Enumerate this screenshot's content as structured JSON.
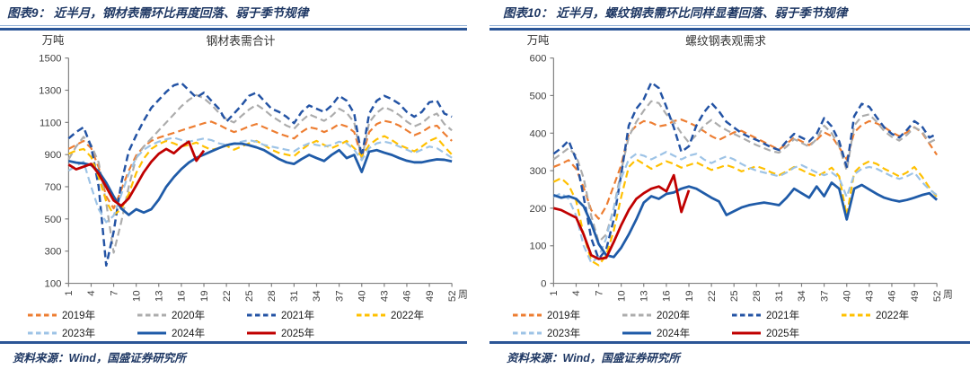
{
  "colors": {
    "header_navy": "#1f3864",
    "rule_navy": "#2b5596",
    "rule_light_blue": "#95b3d7",
    "axis_gray": "#808080",
    "tick_text": "#404040"
  },
  "panels": [
    {
      "figure_label": "图表9：",
      "figure_title": "近半月，钢材表需环比再度回落、弱于季节规律",
      "source": "资料来源：Wind，国盛证券研究所"
    },
    {
      "figure_label": "图表10：",
      "figure_title": "近半月，螺纹钢表需环比同样显著回落、弱于季节规律",
      "source": "资料来源：Wind，国盛证券研究所"
    }
  ],
  "chart_data": [
    {
      "type": "line",
      "title": "钢材表需合计",
      "unit": "万吨",
      "x_axis_suffix": "周",
      "x_range": [
        1,
        52
      ],
      "x_ticks": [
        1,
        4,
        7,
        10,
        13,
        16,
        19,
        22,
        25,
        28,
        31,
        34,
        37,
        40,
        43,
        46,
        49,
        52
      ],
      "ylim": [
        100,
        1500
      ],
      "y_ticks": [
        100,
        300,
        500,
        700,
        900,
        1100,
        1300,
        1500
      ],
      "grid": false,
      "legend_position": "bottom",
      "series": [
        {
          "name": "2019年",
          "color": "#ED7D31",
          "style": "dashed",
          "width": 2.2,
          "values": [
            935,
            960,
            985,
            940,
            820,
            640,
            565,
            680,
            800,
            895,
            950,
            985,
            1005,
            1020,
            1035,
            1050,
            1065,
            1080,
            1095,
            1105,
            1085,
            1060,
            1040,
            1055,
            1075,
            1090,
            1070,
            1050,
            1030,
            1015,
            1000,
            1040,
            1070,
            1060,
            1040,
            1060,
            1090,
            1075,
            1040,
            880,
            1040,
            1090,
            1110,
            1100,
            1080,
            1050,
            1020,
            1040,
            1070,
            1080,
            1030,
            985
          ]
        },
        {
          "name": "2020年",
          "color": "#ACACAC",
          "style": "dashed",
          "width": 2.2,
          "values": [
            870,
            950,
            1010,
            960,
            850,
            600,
            290,
            480,
            700,
            880,
            950,
            1000,
            1050,
            1100,
            1150,
            1200,
            1240,
            1270,
            1250,
            1210,
            1160,
            1120,
            1100,
            1140,
            1180,
            1210,
            1180,
            1140,
            1110,
            1080,
            1060,
            1110,
            1150,
            1130,
            1110,
            1140,
            1185,
            1160,
            1100,
            870,
            1100,
            1160,
            1195,
            1175,
            1145,
            1105,
            1075,
            1095,
            1135,
            1155,
            1090,
            1050
          ]
        },
        {
          "name": "2021年",
          "color": "#2353A4",
          "style": "dashed",
          "width": 2.5,
          "values": [
            1000,
            1040,
            1070,
            950,
            700,
            210,
            420,
            720,
            920,
            1020,
            1110,
            1190,
            1240,
            1290,
            1330,
            1345,
            1300,
            1255,
            1285,
            1235,
            1185,
            1105,
            1155,
            1205,
            1265,
            1285,
            1235,
            1185,
            1165,
            1135,
            1095,
            1165,
            1205,
            1185,
            1165,
            1205,
            1265,
            1235,
            1155,
            885,
            1155,
            1235,
            1265,
            1245,
            1215,
            1165,
            1135,
            1165,
            1225,
            1235,
            1155,
            1135
          ]
        },
        {
          "name": "2022年",
          "color": "#FFC000",
          "style": "dashed",
          "width": 2.2,
          "values": [
            905,
            925,
            935,
            885,
            760,
            610,
            525,
            560,
            655,
            785,
            875,
            935,
            965,
            985,
            970,
            950,
            960,
            975,
            950,
            930,
            940,
            955,
            930,
            950,
            970,
            985,
            960,
            930,
            910,
            900,
            890,
            930,
            965,
            985,
            960,
            940,
            960,
            985,
            940,
            890,
            960,
            995,
            1015,
            990,
            960,
            940,
            920,
            950,
            985,
            1005,
            950,
            900
          ]
        },
        {
          "name": "2023年",
          "color": "#9DC3E6",
          "style": "dashed",
          "width": 2.2,
          "values": [
            800,
            830,
            855,
            700,
            560,
            480,
            520,
            650,
            780,
            880,
            930,
            960,
            980,
            995,
            1005,
            990,
            980,
            990,
            1000,
            990,
            970,
            960,
            970,
            980,
            990,
            980,
            960,
            950,
            940,
            930,
            920,
            950,
            970,
            960,
            950,
            960,
            980,
            970,
            930,
            865,
            940,
            970,
            980,
            970,
            950,
            930,
            910,
            930,
            950,
            940,
            910,
            880
          ]
        },
        {
          "name": "2024年",
          "color": "#1F5BA8",
          "style": "solid",
          "width": 2.8,
          "values": [
            860,
            850,
            845,
            835,
            795,
            725,
            640,
            565,
            525,
            560,
            540,
            560,
            620,
            700,
            760,
            810,
            850,
            880,
            900,
            920,
            940,
            958,
            968,
            968,
            958,
            945,
            928,
            900,
            872,
            852,
            842,
            872,
            898,
            878,
            860,
            898,
            928,
            878,
            898,
            792,
            918,
            928,
            912,
            898,
            878,
            862,
            852,
            852,
            862,
            870,
            868,
            858
          ]
        },
        {
          "name": "2025年",
          "color": "#C00000",
          "style": "solid",
          "width": 2.8,
          "values": [
            838,
            808,
            825,
            842,
            780,
            698,
            615,
            582,
            628,
            708,
            790,
            855,
            905,
            935,
            908,
            950,
            980,
            862,
            925
          ]
        }
      ]
    },
    {
      "type": "line",
      "title": "螺纹钢表观需求",
      "unit": "万吨",
      "x_axis_suffix": "周",
      "x_range": [
        1,
        52
      ],
      "x_ticks": [
        1,
        4,
        7,
        10,
        13,
        16,
        19,
        22,
        25,
        28,
        31,
        34,
        37,
        40,
        43,
        46,
        49,
        52
      ],
      "ylim": [
        0,
        600
      ],
      "y_ticks": [
        0,
        100,
        200,
        300,
        400,
        500,
        600
      ],
      "grid": false,
      "legend_position": "bottom",
      "series": [
        {
          "name": "2019年",
          "color": "#ED7D31",
          "style": "dashed",
          "width": 2.2,
          "values": [
            310,
            318,
            328,
            305,
            255,
            195,
            172,
            205,
            260,
            315,
            398,
            420,
            432,
            428,
            418,
            422,
            432,
            436,
            428,
            418,
            405,
            392,
            382,
            392,
            402,
            406,
            396,
            386,
            376,
            366,
            356,
            372,
            388,
            378,
            368,
            382,
            402,
            392,
            362,
            330,
            402,
            422,
            432,
            426,
            416,
            402,
            392,
            402,
            416,
            402,
            372,
            342
          ]
        },
        {
          "name": "2020年",
          "color": "#ACACAC",
          "style": "dashed",
          "width": 2.2,
          "values": [
            330,
            345,
            360,
            340,
            280,
            180,
            110,
            130,
            200,
            300,
            390,
            430,
            460,
            485,
            480,
            450,
            430,
            400,
            375,
            395,
            420,
            435,
            420,
            408,
            398,
            388,
            378,
            368,
            360,
            352,
            348,
            364,
            384,
            374,
            364,
            384,
            420,
            400,
            365,
            300,
            420,
            445,
            450,
            430,
            405,
            390,
            380,
            395,
            415,
            405,
            375,
            385
          ]
        },
        {
          "name": "2021年",
          "color": "#2353A4",
          "style": "dashed",
          "width": 2.5,
          "values": [
            345,
            360,
            380,
            330,
            230,
            120,
            65,
            90,
            170,
            290,
            420,
            465,
            490,
            535,
            520,
            470,
            415,
            350,
            365,
            420,
            455,
            480,
            458,
            430,
            415,
            400,
            390,
            382,
            372,
            362,
            355,
            378,
            398,
            388,
            378,
            398,
            440,
            418,
            378,
            310,
            445,
            478,
            470,
            442,
            415,
            398,
            388,
            408,
            432,
            418,
            388,
            398
          ]
        },
        {
          "name": "2022年",
          "color": "#FFC000",
          "style": "dashed",
          "width": 2.2,
          "values": [
            270,
            280,
            262,
            220,
            130,
            60,
            48,
            75,
            140,
            230,
            310,
            330,
            318,
            305,
            315,
            325,
            318,
            308,
            315,
            322,
            312,
            302,
            308,
            315,
            308,
            298,
            305,
            312,
            305,
            295,
            288,
            298,
            310,
            302,
            292,
            285,
            295,
            308,
            285,
            180,
            295,
            315,
            325,
            318,
            305,
            295,
            285,
            295,
            310,
            285,
            255,
            230
          ]
        },
        {
          "name": "2023年",
          "color": "#9DC3E6",
          "style": "dashed",
          "width": 2.2,
          "values": [
            230,
            240,
            225,
            180,
            100,
            55,
            70,
            120,
            200,
            280,
            330,
            345,
            340,
            330,
            340,
            350,
            340,
            330,
            340,
            345,
            330,
            320,
            330,
            338,
            330,
            318,
            308,
            300,
            295,
            290,
            285,
            295,
            308,
            315,
            305,
            295,
            288,
            295,
            280,
            230,
            290,
            305,
            310,
            305,
            295,
            285,
            278,
            285,
            295,
            270,
            250,
            235
          ]
        },
        {
          "name": "2024年",
          "color": "#1F5BA8",
          "style": "solid",
          "width": 2.8,
          "values": [
            235,
            228,
            232,
            225,
            205,
            160,
            105,
            75,
            70,
            95,
            130,
            170,
            215,
            232,
            225,
            238,
            242,
            252,
            258,
            252,
            240,
            228,
            218,
            182,
            192,
            202,
            208,
            212,
            215,
            212,
            208,
            228,
            252,
            240,
            228,
            258,
            232,
            268,
            252,
            170,
            252,
            262,
            250,
            238,
            228,
            222,
            218,
            222,
            228,
            235,
            240,
            222
          ]
        },
        {
          "name": "2025年",
          "color": "#C00000",
          "style": "solid",
          "width": 2.8,
          "values": [
            200,
            195,
            185,
            175,
            130,
            75,
            65,
            68,
            110,
            155,
            195,
            225,
            240,
            252,
            258,
            245,
            288,
            190,
            248
          ]
        }
      ]
    }
  ]
}
